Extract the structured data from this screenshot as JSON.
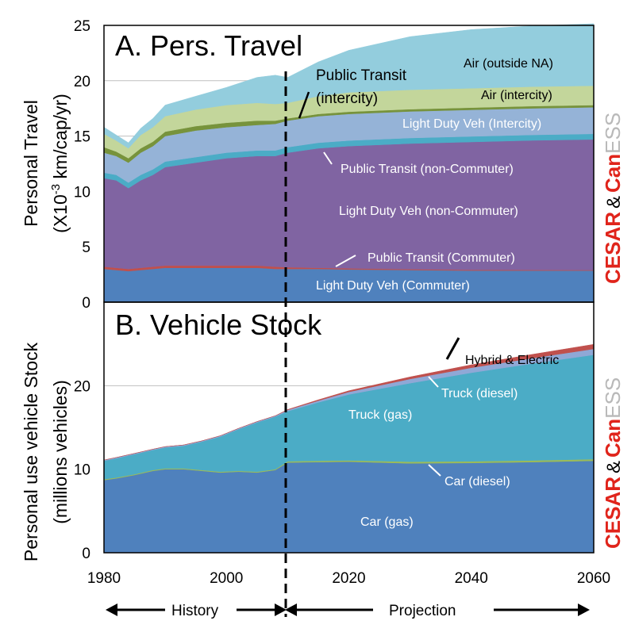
{
  "chart_data": [
    {
      "type": "area",
      "title": "A. Pers. Travel",
      "ylabel_line1": "Personal Travel",
      "ylabel_line2_pre": "(X10",
      "ylabel_line2_sup": "-3",
      "ylabel_line2_post": " km/cap/yr)",
      "ylim": [
        0,
        25
      ],
      "yticks": [
        "0",
        "5",
        "10",
        "15",
        "20",
        "25"
      ],
      "ytick_values": [
        0,
        5,
        10,
        15,
        20,
        25
      ],
      "xlim": [
        1980,
        2060
      ],
      "stacked": true,
      "x": [
        1980,
        1982,
        1984,
        1986,
        1988,
        1990,
        1995,
        2000,
        2005,
        2008,
        2010,
        2015,
        2020,
        2030,
        2040,
        2050,
        2060
      ],
      "series": [
        {
          "name": "Light Duty Veh (Commuter)",
          "color": "#4f81bd",
          "values": [
            3.0,
            2.9,
            2.8,
            2.9,
            3.0,
            3.1,
            3.1,
            3.1,
            3.1,
            3.0,
            3.0,
            3.0,
            2.95,
            2.9,
            2.85,
            2.85,
            2.85
          ]
        },
        {
          "name": "Public Transit (Commuter)",
          "color": "#c0504d",
          "values": [
            0.2,
            0.2,
            0.2,
            0.2,
            0.2,
            0.2,
            0.2,
            0.2,
            0.2,
            0.2,
            0.15,
            0.1,
            0.1,
            0.08,
            0.07,
            0.06,
            0.05
          ]
        },
        {
          "name": "Light Duty Veh (non-Commuter)",
          "color": "#8064a2",
          "values": [
            8.0,
            7.9,
            7.3,
            7.9,
            8.3,
            8.9,
            9.3,
            9.7,
            9.9,
            10.0,
            10.35,
            10.8,
            11.05,
            11.35,
            11.55,
            11.7,
            11.8
          ]
        },
        {
          "name": "Public Transit (non-Commuter)",
          "color": "#4bacc6",
          "values": [
            0.5,
            0.5,
            0.5,
            0.5,
            0.5,
            0.5,
            0.5,
            0.5,
            0.5,
            0.5,
            0.5,
            0.5,
            0.5,
            0.5,
            0.5,
            0.5,
            0.5
          ]
        },
        {
          "name": "Light Duty Veh (Intercity)",
          "color": "#95b3d7",
          "values": [
            1.8,
            1.7,
            1.8,
            2.0,
            2.1,
            2.3,
            2.4,
            2.3,
            2.3,
            2.4,
            2.4,
            2.4,
            2.4,
            2.4,
            2.4,
            2.4,
            2.4
          ]
        },
        {
          "name": "Public Transit (intercity)",
          "color": "#77933c",
          "values": [
            0.5,
            0.4,
            0.4,
            0.4,
            0.4,
            0.4,
            0.4,
            0.4,
            0.4,
            0.3,
            0.2,
            0.2,
            0.2,
            0.2,
            0.2,
            0.2,
            0.2
          ]
        },
        {
          "name": "Air (intercity)",
          "color": "#c3d69b",
          "values": [
            1.2,
            1.0,
            0.9,
            1.2,
            1.3,
            1.4,
            1.5,
            1.6,
            1.6,
            1.5,
            1.4,
            1.6,
            1.75,
            1.75,
            1.75,
            1.75,
            1.75
          ]
        },
        {
          "name": "Air (outside NA)",
          "color": "#93cddd",
          "values": [
            0.6,
            0.5,
            0.5,
            0.6,
            0.8,
            1.0,
            1.2,
            1.6,
            2.3,
            2.6,
            2.3,
            3.1,
            3.8,
            4.8,
            5.3,
            5.5,
            5.6
          ]
        }
      ],
      "labels": [
        {
          "text": "Air (outside NA)",
          "style": "dark"
        },
        {
          "text": "Air (intercity)",
          "style": "dark"
        },
        {
          "text": "Public Transit",
          "style": "big"
        },
        {
          "text": "(intercity)",
          "style": "big"
        },
        {
          "text": "Light Duty Veh (Intercity)",
          "style": "light"
        },
        {
          "text": "Public Transit (non-Commuter)",
          "style": "light"
        },
        {
          "text": "Light Duty Veh (non-Commuter)",
          "style": "light"
        },
        {
          "text": "Public Transit (Commuter)",
          "style": "light"
        },
        {
          "text": "Light Duty Veh (Commuter)",
          "style": "light"
        }
      ]
    },
    {
      "type": "area",
      "title": "B. Vehicle Stock",
      "ylabel_line1": "Personal use vehicle Stock",
      "ylabel_line2": "(millions vehicles)",
      "ylim": [
        0,
        30
      ],
      "yticks": [
        "0",
        "10",
        "20"
      ],
      "ytick_values": [
        0,
        10,
        20
      ],
      "xlim": [
        1980,
        2060
      ],
      "xticks": [
        "1980",
        "2000",
        "2020",
        "2040",
        "2060"
      ],
      "xtick_values": [
        1980,
        2000,
        2020,
        2040,
        2060
      ],
      "stacked": true,
      "x": [
        1980,
        1982,
        1985,
        1988,
        1990,
        1993,
        1996,
        1999,
        2002,
        2005,
        2008,
        2010,
        2015,
        2020,
        2030,
        2040,
        2050,
        2060
      ],
      "series": [
        {
          "name": "Car (gas)",
          "color": "#4f81bd",
          "values": [
            8.7,
            8.9,
            9.3,
            9.8,
            10.0,
            10.0,
            9.8,
            9.6,
            9.7,
            9.6,
            9.9,
            10.8,
            10.85,
            10.9,
            10.7,
            10.75,
            10.85,
            11.0
          ]
        },
        {
          "name": "Car (diesel)",
          "color": "#9bbb59",
          "values": [
            0.1,
            0.1,
            0.1,
            0.1,
            0.1,
            0.1,
            0.1,
            0.1,
            0.1,
            0.1,
            0.1,
            0.15,
            0.15,
            0.15,
            0.2,
            0.2,
            0.2,
            0.2
          ]
        },
        {
          "name": "Truck (gas)",
          "color": "#4bacc6",
          "values": [
            2.2,
            2.3,
            2.4,
            2.4,
            2.5,
            2.7,
            3.4,
            4.2,
            5.0,
            5.9,
            6.3,
            6.0,
            7.0,
            7.9,
            9.4,
            10.6,
            11.6,
            12.5
          ]
        },
        {
          "name": "Truck (diesel)",
          "color": "#8fa8d6",
          "values": [
            0.1,
            0.1,
            0.1,
            0.1,
            0.1,
            0.1,
            0.1,
            0.1,
            0.1,
            0.1,
            0.1,
            0.15,
            0.2,
            0.3,
            0.5,
            0.6,
            0.65,
            0.7
          ]
        },
        {
          "name": "Hybrid & Electric",
          "color": "#c0504d",
          "values": [
            0,
            0,
            0,
            0,
            0,
            0,
            0,
            0,
            0,
            0,
            0,
            0.05,
            0.1,
            0.15,
            0.25,
            0.35,
            0.45,
            0.55
          ]
        }
      ],
      "labels": [
        {
          "text": "Hybrid & Electric",
          "style": "dark"
        },
        {
          "text": "Truck (diesel)",
          "style": "light"
        },
        {
          "text": "Truck (gas)",
          "style": "light"
        },
        {
          "text": "Car (diesel)",
          "style": "light"
        },
        {
          "text": "Car (gas)",
          "style": "light"
        }
      ]
    }
  ],
  "periods": {
    "history": "History",
    "projection": "Projection"
  },
  "logo": {
    "part1": "CESAR",
    "amp": "&",
    "part2a": "Can",
    "part2b": "ESS"
  }
}
